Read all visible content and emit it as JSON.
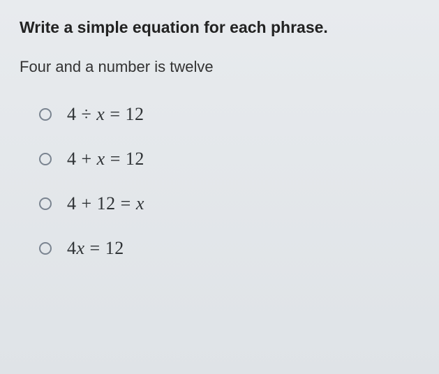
{
  "colors": {
    "background_top": "#e8ebee",
    "background_bottom": "#dfe3e7",
    "title_text": "#222222",
    "body_text": "#333333",
    "equation_text": "#2f3336",
    "radio_border": "#7a8490"
  },
  "typography": {
    "title_fontsize": 23,
    "title_weight": "bold",
    "phrase_fontsize": 22,
    "equation_fontsize": 26,
    "equation_font": "Times New Roman"
  },
  "content": {
    "title": "Write a simple equation for each phrase.",
    "phrase": "Four and a number is twelve",
    "options": [
      {
        "html": "4 ÷ <span class='x'>x</span> = 12"
      },
      {
        "html": "4 + <span class='x'>x</span> = 12"
      },
      {
        "html": "4 + 12 = <span class='x'>x</span>"
      },
      {
        "html": "4<span class='x'>x</span> = 12"
      }
    ]
  }
}
